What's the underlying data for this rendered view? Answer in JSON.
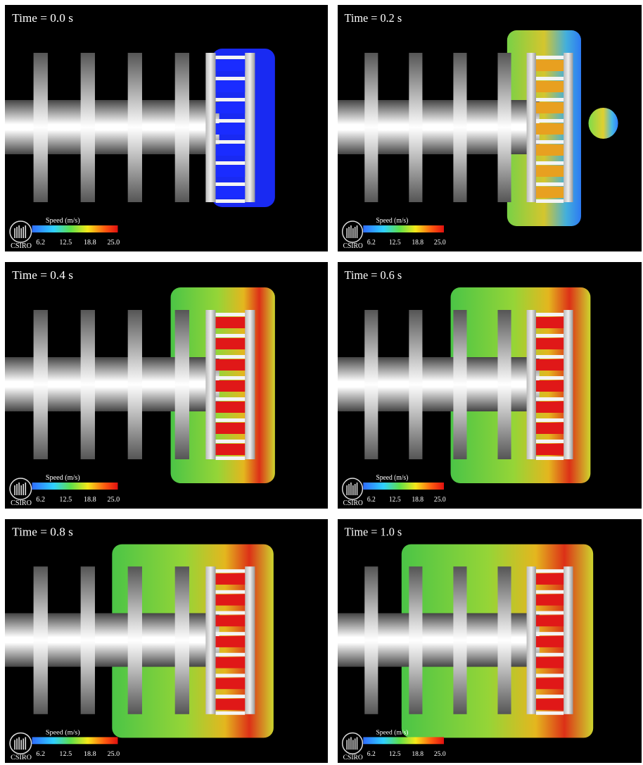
{
  "panels": [
    {
      "time": "Time = 0.0 s"
    },
    {
      "time": "Time = 0.2 s"
    },
    {
      "time": "Time = 0.4 s"
    },
    {
      "time": "Time = 0.6 s"
    },
    {
      "time": "Time = 0.8 s"
    },
    {
      "time": "Time = 1.0 s"
    }
  ],
  "colorbar": {
    "title": "Speed (m/s)",
    "ticks": [
      "6.2",
      "12.5",
      "18.8",
      "25.0"
    ],
    "logo": "CSIRO"
  }
}
